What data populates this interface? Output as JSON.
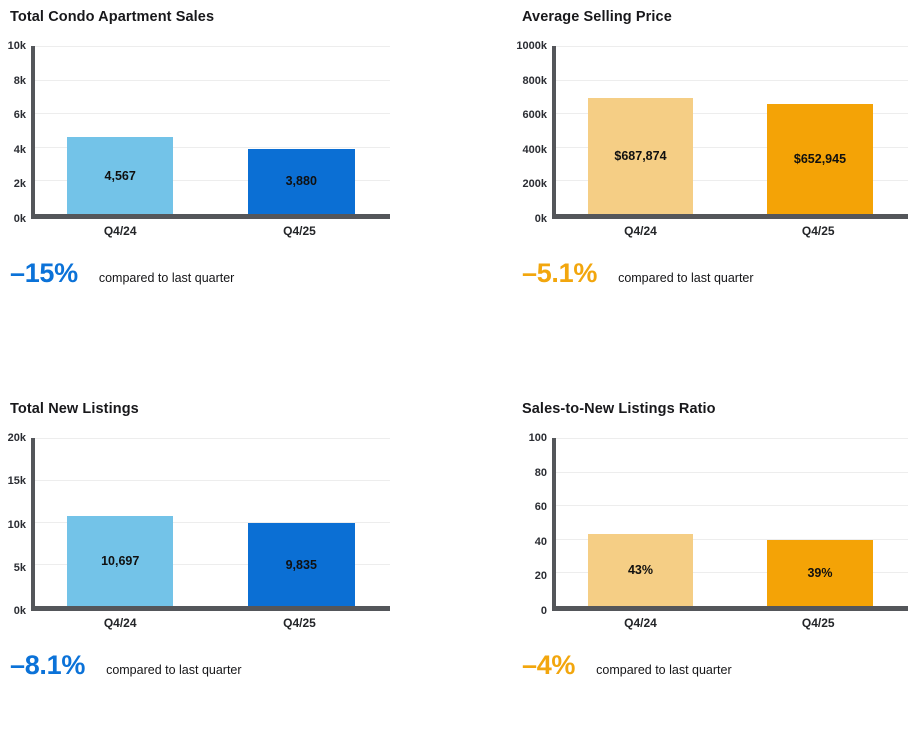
{
  "panels": [
    {
      "title": "Total Condo Apartment Sales",
      "kpi": "–15%",
      "kpi_color": "#0b72d8",
      "note": "compared to last quarter"
    },
    {
      "title": "Average Selling Price",
      "kpi": "–5.1%",
      "kpi_color": "#f2a60d",
      "note": "compared to last quarter"
    },
    {
      "title": "Total New Listings",
      "kpi": "–8.1%",
      "kpi_color": "#0b72d8",
      "note": "compared to last quarter"
    },
    {
      "title": "Sales-to-New Listings Ratio",
      "kpi": "–4%",
      "kpi_color": "#f2a60d",
      "note": "compared to last quarter"
    }
  ],
  "colors": {
    "light_blue_bar": "#73c3e8",
    "dark_blue_bar": "#0b6fd4",
    "light_orange_bar": "#f5ce85",
    "dark_orange_bar": "#f4a306",
    "axis": "#54565a",
    "gridline": "#ededed"
  },
  "chart_data": [
    {
      "type": "bar",
      "title": "Total Condo Apartment Sales",
      "categories": [
        "Q4/24",
        "Q4/25"
      ],
      "values": [
        4567,
        3880
      ],
      "value_labels": [
        "4,567",
        "3,880"
      ],
      "bar_colors": [
        "#73c3e8",
        "#0b6fd4"
      ],
      "xlabel": "",
      "ylabel": "",
      "ylim": [
        0,
        10000
      ],
      "yticks": [
        0,
        2000,
        4000,
        6000,
        8000,
        10000
      ],
      "ytick_labels": [
        "0k",
        "2k",
        "4k",
        "6k",
        "8k",
        "10k"
      ],
      "grid": true,
      "legend": false
    },
    {
      "type": "bar",
      "title": "Average Selling Price",
      "categories": [
        "Q4/24",
        "Q4/25"
      ],
      "values": [
        687874,
        652945
      ],
      "value_labels": [
        "$687,874",
        "$652,945"
      ],
      "bar_colors": [
        "#f5ce85",
        "#f4a306"
      ],
      "xlabel": "",
      "ylabel": "",
      "ylim": [
        0,
        1000000
      ],
      "yticks": [
        0,
        200000,
        400000,
        600000,
        800000,
        1000000
      ],
      "ytick_labels": [
        "0k",
        "200k",
        "400k",
        "600k",
        "800k",
        "1000k"
      ],
      "grid": true,
      "legend": false
    },
    {
      "type": "bar",
      "title": "Total New Listings",
      "categories": [
        "Q4/24",
        "Q4/25"
      ],
      "values": [
        10697,
        9835
      ],
      "value_labels": [
        "10,697",
        "9,835"
      ],
      "bar_colors": [
        "#73c3e8",
        "#0b6fd4"
      ],
      "xlabel": "",
      "ylabel": "",
      "ylim": [
        0,
        20000
      ],
      "yticks": [
        0,
        5000,
        10000,
        15000,
        20000
      ],
      "ytick_labels": [
        "0k",
        "5k",
        "10k",
        "15k",
        "20k"
      ],
      "grid": true,
      "legend": false
    },
    {
      "type": "bar",
      "title": "Sales-to-New Listings Ratio",
      "categories": [
        "Q4/24",
        "Q4/25"
      ],
      "values": [
        43,
        39
      ],
      "value_labels": [
        "43%",
        "39%"
      ],
      "bar_colors": [
        "#f5ce85",
        "#f4a306"
      ],
      "xlabel": "",
      "ylabel": "",
      "ylim": [
        0,
        100
      ],
      "yticks": [
        0,
        20,
        40,
        60,
        80,
        100
      ],
      "ytick_labels": [
        "0",
        "20",
        "40",
        "60",
        "80",
        "100"
      ],
      "grid": true,
      "legend": false
    }
  ]
}
